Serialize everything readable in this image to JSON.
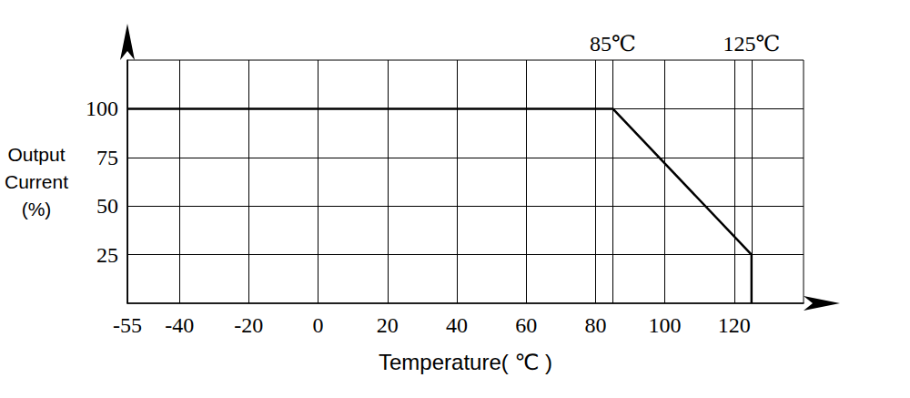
{
  "chart_data": {
    "type": "line",
    "x_label": "Temperature( ℃ )",
    "y_label": "Output\nCurrent\n(%)",
    "x": [
      -55,
      85,
      125,
      125
    ],
    "values": [
      100,
      100,
      25,
      0
    ],
    "color": "#000000",
    "xlim": [
      -55,
      140
    ],
    "xticks": [
      -55,
      -40,
      -20,
      0,
      20,
      40,
      60,
      80,
      100,
      120
    ],
    "ylim": [
      0,
      125
    ],
    "yticks": [
      25,
      50,
      75,
      100
    ],
    "annotations": [
      {
        "x": 85,
        "label": "85℃"
      },
      {
        "x": 125,
        "label": "125℃"
      }
    ],
    "grid": true
  }
}
